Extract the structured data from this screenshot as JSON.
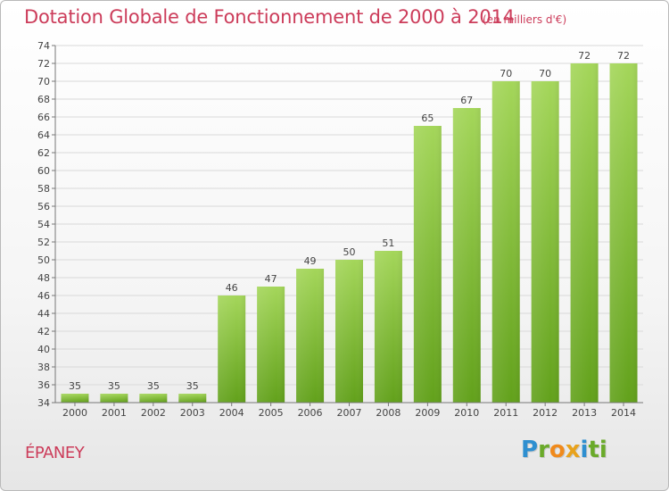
{
  "title": "Dotation Globale de Fonctionnement de 2000 à 2014",
  "unit_note": "(en milliers d'€)",
  "commune": "ÉPANEY",
  "brand": {
    "letters": [
      "P",
      "r",
      "o",
      "x",
      "i",
      "t",
      "i"
    ],
    "colors": [
      "#2e8fd0",
      "#6aaa2a",
      "#f08a1c",
      "#e8a21c",
      "#2e8fd0",
      "#6aaa2a",
      "#6aaa2a"
    ]
  },
  "colors": {
    "title": "#cc3c5a",
    "bar_top": "#a4d65a",
    "bar_bottom": "#62a11b",
    "grid": "#d9d9d9",
    "axis": "#777777"
  },
  "chart_data": {
    "type": "bar",
    "categories": [
      "2000",
      "2001",
      "2002",
      "2003",
      "2004",
      "2005",
      "2006",
      "2007",
      "2008",
      "2009",
      "2010",
      "2011",
      "2012",
      "2013",
      "2014"
    ],
    "values": [
      35,
      35,
      35,
      35,
      46,
      47,
      49,
      50,
      51,
      65,
      67,
      70,
      70,
      72,
      72
    ],
    "ylim": [
      34,
      74
    ],
    "ytick_step": 2,
    "grid": true,
    "title": "Dotation Globale de Fonctionnement de 2000 à 2014",
    "xlabel": "",
    "ylabel": ""
  }
}
